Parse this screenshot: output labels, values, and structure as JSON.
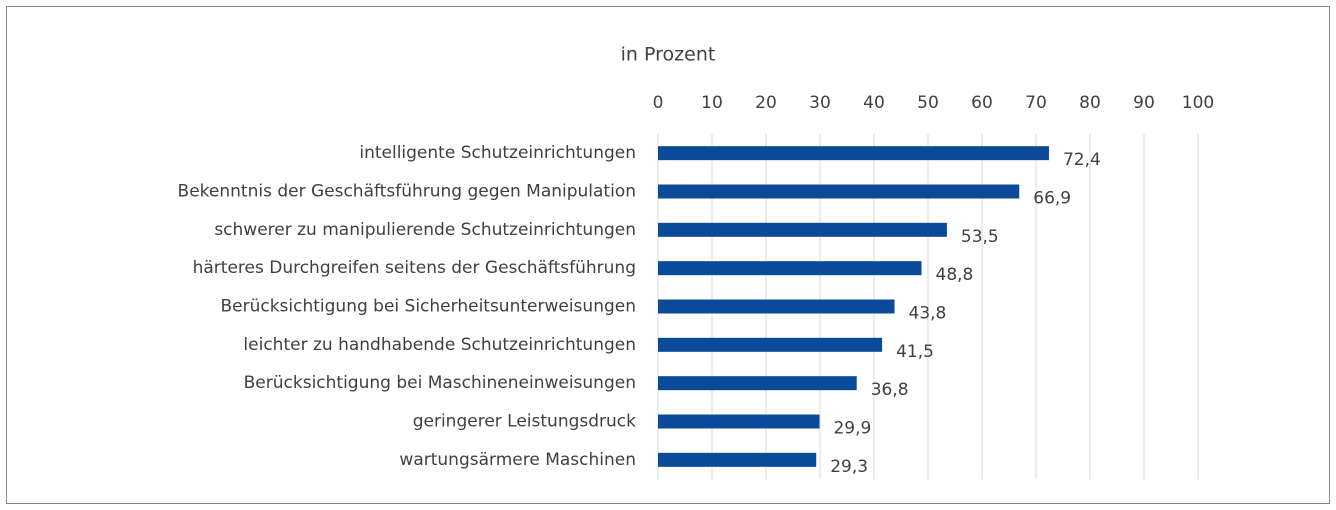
{
  "chart_data": {
    "type": "bar",
    "orientation": "horizontal",
    "xlabel": "in Prozent",
    "categories": [
      "intelligente Schutzeinrichtungen",
      "Bekenntnis der Geschäftsführung gegen Manipulation",
      "schwerer zu manipulierende Schutzeinrichtungen",
      "härteres Durchgreifen seitens der Geschäftsführung",
      "Berücksichtigung bei Sicherheitsunterweisungen",
      "leichter zu handhabende Schutzeinrichtungen",
      "Berücksichtigung bei Maschineneinweisungen",
      "geringerer Leistungsdruck",
      "wartungsärmere Maschinen"
    ],
    "values": [
      72.4,
      66.9,
      53.5,
      48.8,
      43.8,
      41.5,
      36.8,
      29.9,
      29.3
    ],
    "value_labels": [
      "72,4",
      "66,9",
      "53,5",
      "48,8",
      "43,8",
      "41,5",
      "36,8",
      "29,9",
      "29,3"
    ],
    "color": "#0a4a98",
    "xlim": [
      0,
      100
    ],
    "xticks": [
      0,
      10,
      20,
      30,
      40,
      50,
      60,
      70,
      80,
      90,
      100
    ],
    "grid": true
  }
}
